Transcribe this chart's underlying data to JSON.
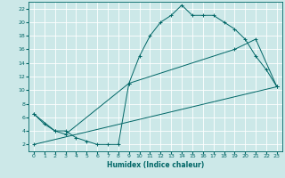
{
  "xlabel": "Humidex (Indice chaleur)",
  "ylabel": "",
  "background_color": "#cce8e8",
  "grid_color": "#ffffff",
  "line_color": "#006666",
  "xlim": [
    -0.5,
    23.5
  ],
  "ylim": [
    1,
    23
  ],
  "xticks": [
    0,
    1,
    2,
    3,
    4,
    5,
    6,
    7,
    8,
    9,
    10,
    11,
    12,
    13,
    14,
    15,
    16,
    17,
    18,
    19,
    20,
    21,
    22,
    23
  ],
  "yticks": [
    2,
    4,
    6,
    8,
    10,
    12,
    14,
    16,
    18,
    20,
    22
  ],
  "line1_x": [
    0,
    1,
    2,
    3,
    4,
    5,
    6,
    7,
    8,
    9,
    10,
    11,
    12,
    13,
    14,
    15,
    16,
    17,
    18,
    19,
    20,
    21,
    22,
    23
  ],
  "line1_y": [
    6.5,
    5,
    4,
    4,
    3,
    2.5,
    2,
    2,
    2,
    11,
    15,
    18,
    20,
    21,
    22.5,
    21,
    21,
    21,
    20,
    19,
    17.5,
    15,
    13,
    10.5
  ],
  "line2_x": [
    0,
    2,
    3,
    9,
    19,
    21,
    23
  ],
  "line2_y": [
    6.5,
    4,
    3.5,
    11,
    16,
    17.5,
    10.5
  ],
  "line3_x": [
    0,
    23
  ],
  "line3_y": [
    2,
    10.5
  ]
}
